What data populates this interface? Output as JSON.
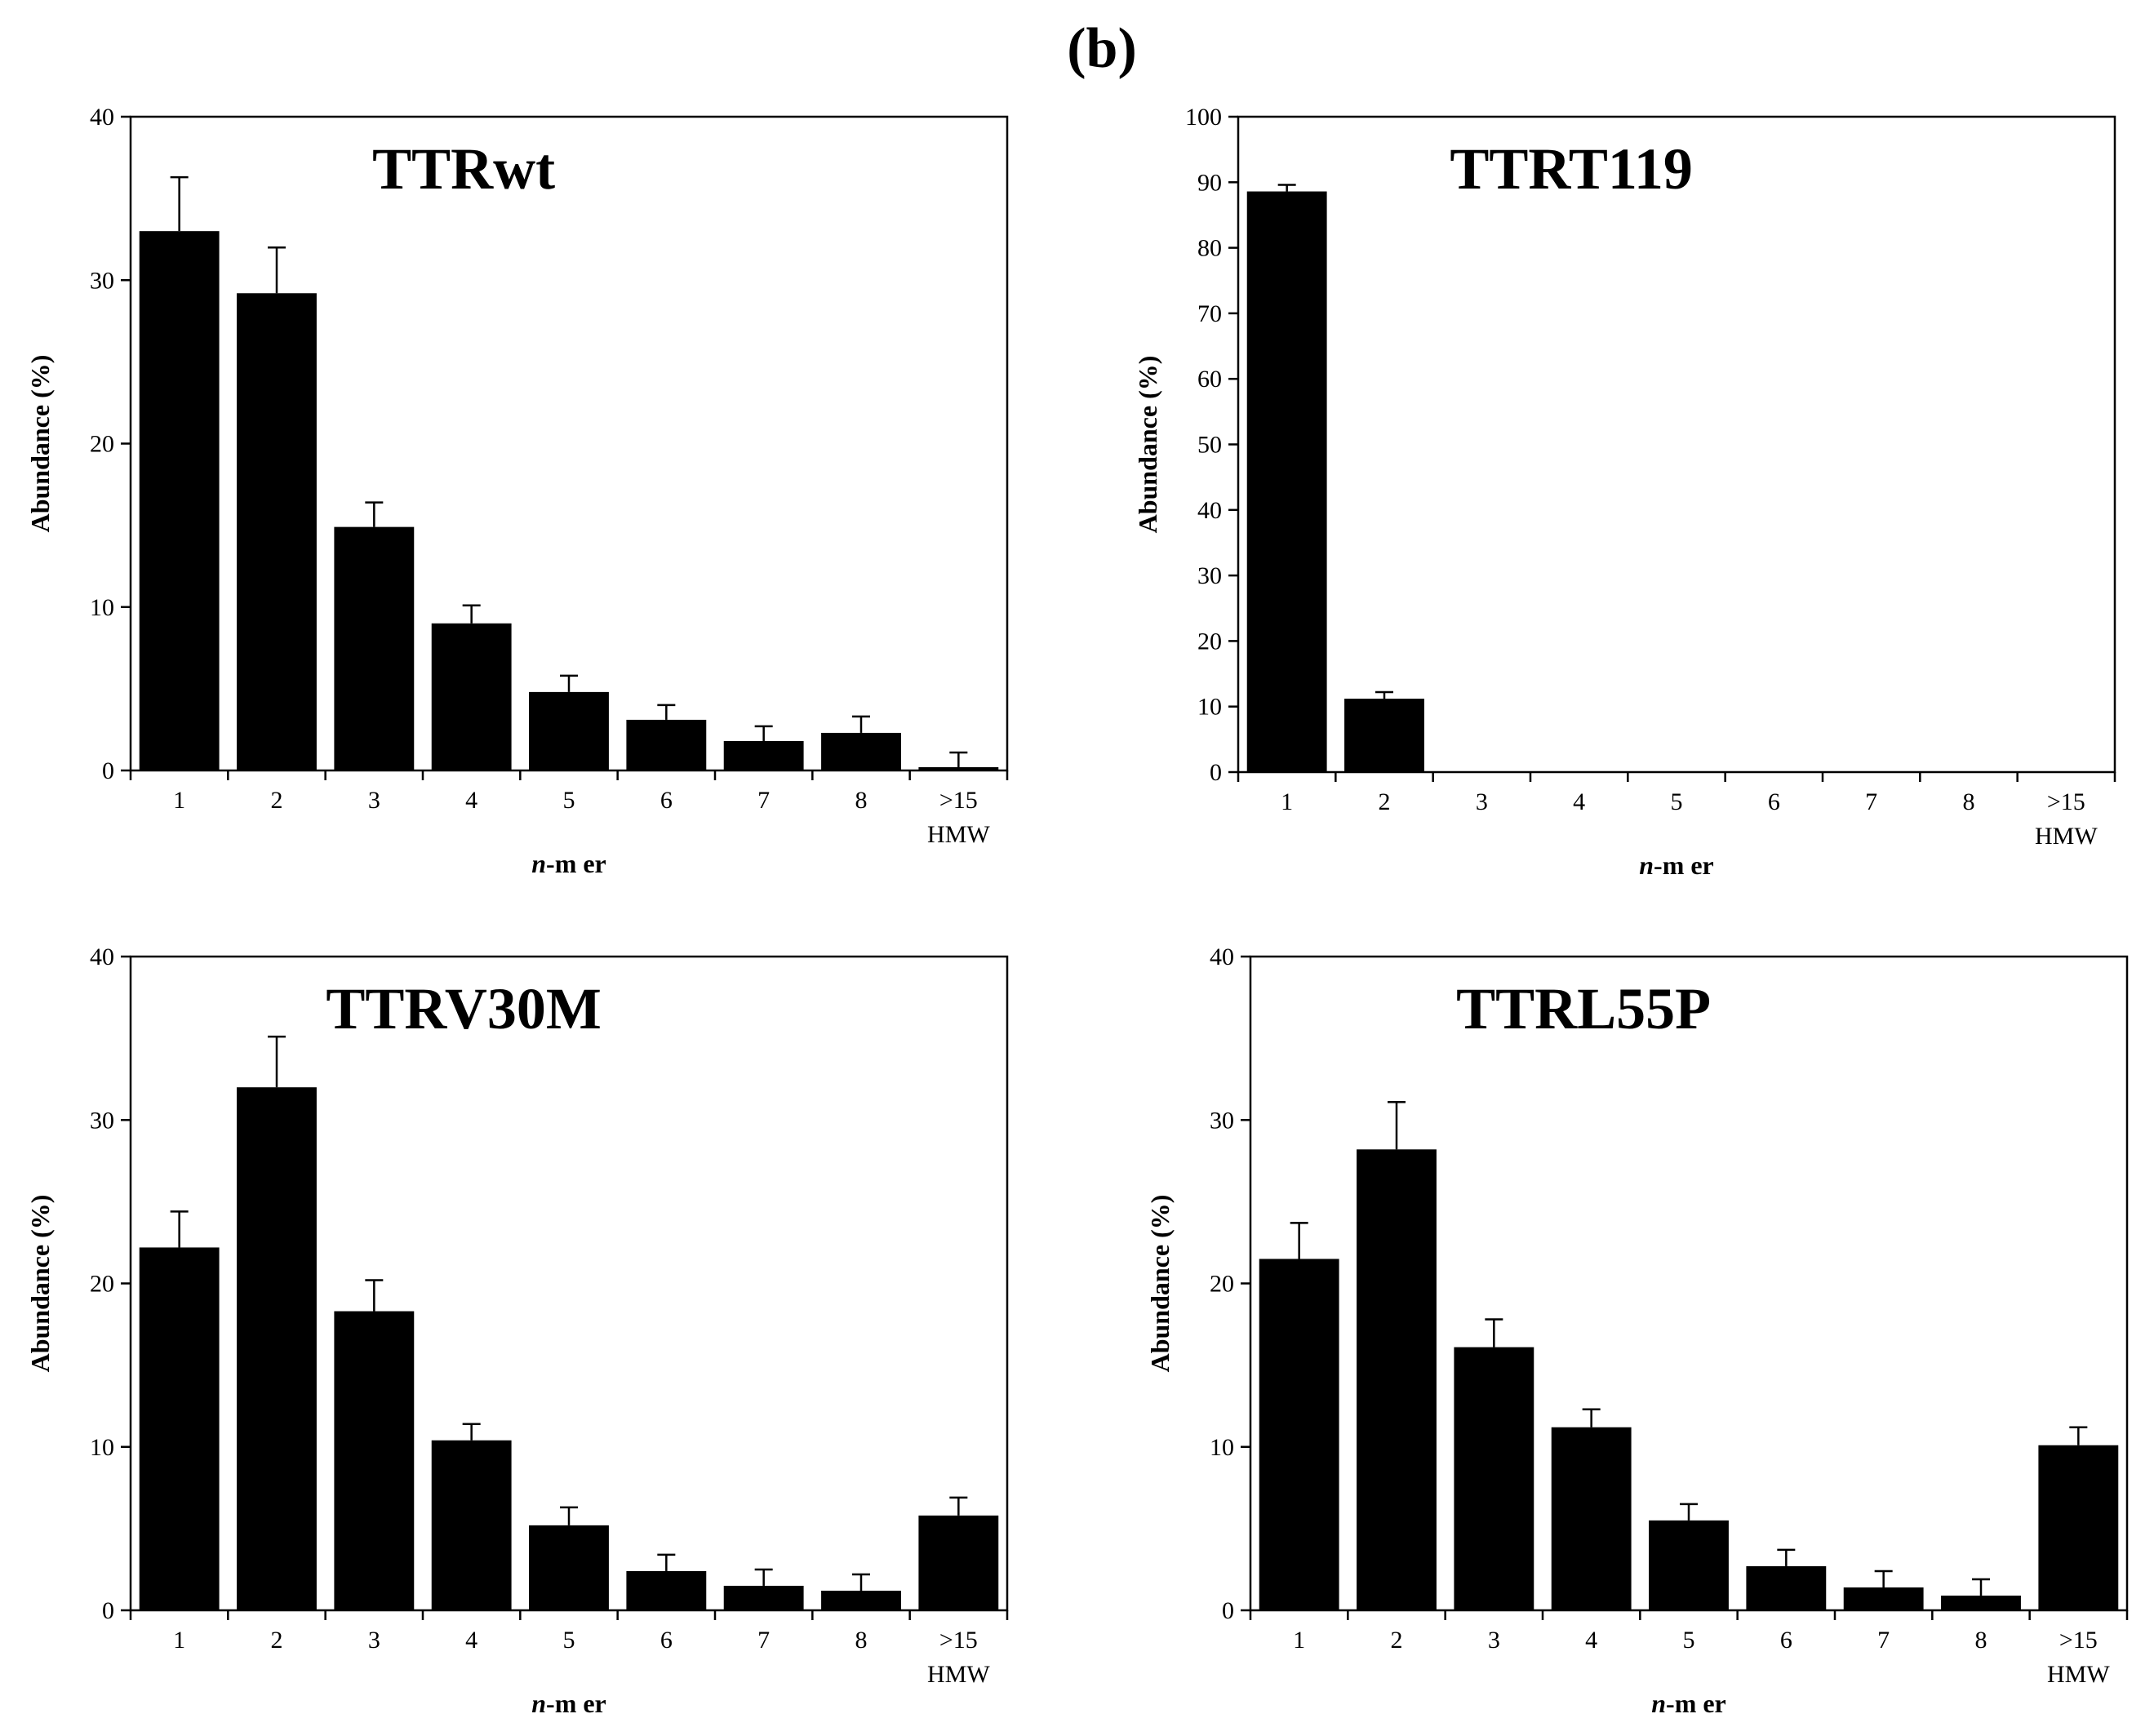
{
  "figure": {
    "panel_label": "(b)"
  },
  "chart_data": [
    {
      "type": "bar",
      "title": "TTRwt",
      "xlabel_italic": "n",
      "xlabel_rest": "-m er",
      "ylabel": "Abundance (%)",
      "categories": [
        "1",
        "2",
        "3",
        "4",
        "5",
        "6",
        "7",
        "8",
        ">15"
      ],
      "category_sublabels": [
        "",
        "",
        "",
        "",
        "",
        "",
        "",
        "",
        "HMW"
      ],
      "values": [
        33.0,
        29.2,
        14.9,
        9.0,
        4.8,
        3.1,
        1.8,
        2.3,
        0.2
      ],
      "errors": [
        3.3,
        2.8,
        1.5,
        1.1,
        1.0,
        0.9,
        0.9,
        1.0,
        0.9
      ],
      "ylim": [
        0,
        40
      ],
      "yticks": [
        0,
        10,
        20,
        30,
        40
      ],
      "legend": false,
      "grid": false
    },
    {
      "type": "bar",
      "title": "TTRT119",
      "xlabel_italic": "n",
      "xlabel_rest": "-m er",
      "ylabel": "Abundance (%)",
      "categories": [
        "1",
        "2",
        "3",
        "4",
        "5",
        "6",
        "7",
        "8",
        ">15"
      ],
      "category_sublabels": [
        "",
        "",
        "",
        "",
        "",
        "",
        "",
        "",
        "HMW"
      ],
      "values": [
        88.6,
        11.2,
        0,
        0,
        0,
        0,
        0,
        0,
        0
      ],
      "errors": [
        1.0,
        1.0,
        0,
        0,
        0,
        0,
        0,
        0,
        0
      ],
      "ylim": [
        0,
        100
      ],
      "yticks": [
        0,
        10,
        20,
        30,
        40,
        50,
        60,
        70,
        80,
        90,
        100
      ],
      "legend": false,
      "grid": false
    },
    {
      "type": "bar",
      "title": "TTRV30M",
      "xlabel_italic": "n",
      "xlabel_rest": "-m er",
      "ylabel": "Abundance (%)",
      "categories": [
        "1",
        "2",
        "3",
        "4",
        "5",
        "6",
        "7",
        "8",
        ">15"
      ],
      "category_sublabels": [
        "",
        "",
        "",
        "",
        "",
        "",
        "",
        "",
        "HMW"
      ],
      "values": [
        22.2,
        32.0,
        18.3,
        10.4,
        5.2,
        2.4,
        1.5,
        1.2,
        5.8
      ],
      "errors": [
        2.2,
        3.1,
        1.9,
        1.0,
        1.1,
        1.0,
        1.0,
        1.0,
        1.1
      ],
      "ylim": [
        0,
        40
      ],
      "yticks": [
        0,
        10,
        20,
        30,
        40
      ],
      "legend": false,
      "grid": false
    },
    {
      "type": "bar",
      "title": "TTRL55P",
      "xlabel_italic": "n",
      "xlabel_rest": "-m er",
      "ylabel": "Abundance (%)",
      "categories": [
        "1",
        "2",
        "3",
        "4",
        "5",
        "6",
        "7",
        "8",
        ">15"
      ],
      "category_sublabels": [
        "",
        "",
        "",
        "",
        "",
        "",
        "",
        "",
        "HMW"
      ],
      "values": [
        21.5,
        28.2,
        16.1,
        11.2,
        5.5,
        2.7,
        1.4,
        0.9,
        10.1
      ],
      "errors": [
        2.2,
        2.9,
        1.7,
        1.1,
        1.0,
        1.0,
        1.0,
        1.0,
        1.1
      ],
      "ylim": [
        0,
        40
      ],
      "yticks": [
        0,
        10,
        20,
        30,
        40
      ],
      "legend": false,
      "grid": false
    }
  ]
}
